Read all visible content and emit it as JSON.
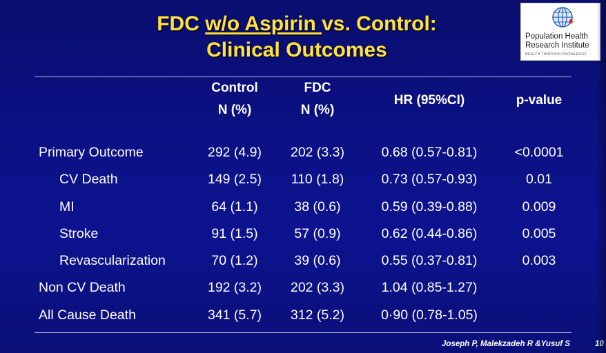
{
  "title": {
    "line1_prefix": "FDC ",
    "line1_underlined": "w/o Aspirin ",
    "line1_suffix": "vs. Control:",
    "line2": "Clinical Outcomes",
    "color": "#ffe23a"
  },
  "logo": {
    "line1": "Population Health",
    "line2": "Research Institute",
    "tagline": "HEALTH THROUGH KNOWLEDGE",
    "icon": "globe-maple-leaf-icon"
  },
  "table": {
    "headers": {
      "control_line1": "Control",
      "control_line2": "N (%)",
      "fdc_line1": "FDC",
      "fdc_line2": "N (%)",
      "hr": "HR (95%CI)",
      "p": "p-value"
    },
    "rows": [
      {
        "label": "Primary Outcome",
        "control": "292 (4.9)",
        "fdc": "202 (3.3)",
        "hr": "0.68 (0.57-0.81)",
        "p": "<0.0001"
      },
      {
        "label": "CV Death",
        "control": "149 (2.5)",
        "fdc": "110 (1.8)",
        "hr": "0.73 (0.57-0.93)",
        "p": "0.01"
      },
      {
        "label": "MI",
        "control": "64 (1.1)",
        "fdc": "38 (0.6)",
        "hr": "0.59 (0.39-0.88)",
        "p": "0.009"
      },
      {
        "label": "Stroke",
        "control": "91 (1.5)",
        "fdc": "57 (0.9)",
        "hr": "0.62 (0.44-0.86)",
        "p": "0.005"
      },
      {
        "label": "Revascularization",
        "control": "70 (1.2)",
        "fdc": "39 (0.6)",
        "hr": "0.55 (0.37-0.81)",
        "p": "0.003"
      },
      {
        "label": "Non CV Death",
        "control": "192 (3.2)",
        "fdc": "202 (3.3)",
        "hr": "1.04 (0.85-1.27)",
        "p": ""
      },
      {
        "label": "All Cause Death",
        "control": "341 (5.7)",
        "fdc": "312 (5.2)",
        "hr": "0·90 (0.78-1.05)",
        "p": ""
      }
    ]
  },
  "footer": {
    "citation": "Joseph P, Malekzadeh R &Yusuf S",
    "page": "10"
  }
}
